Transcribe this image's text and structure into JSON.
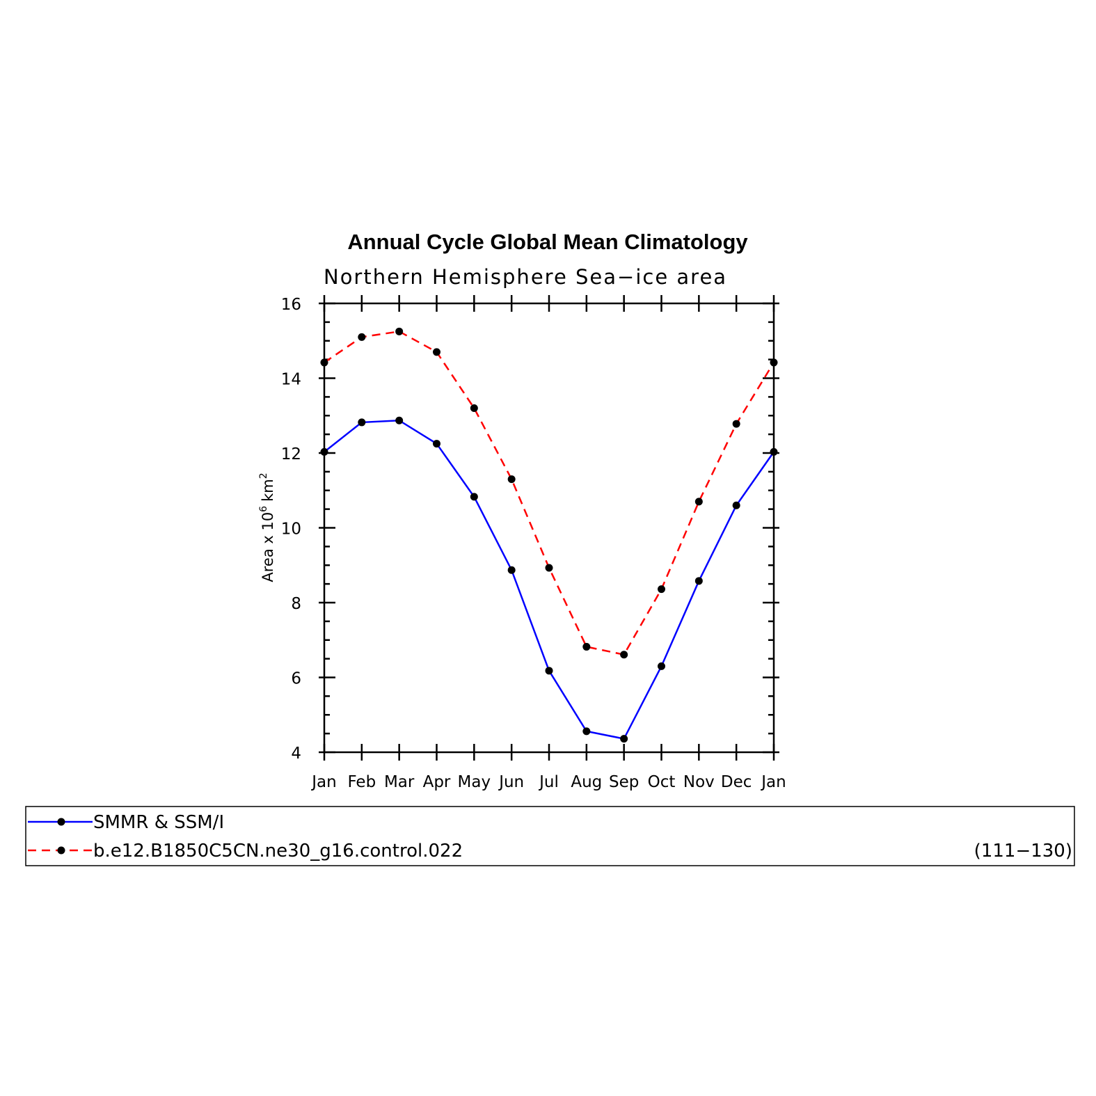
{
  "chart_data": {
    "type": "line",
    "title": "Annual Cycle Global Mean Climatology",
    "subtitle": "Northern Hemisphere Sea−ice area",
    "ylabel": "Area x 10",
    "ylabel_exponent": "6",
    "ylabel_unit": "km",
    "ylabel_unit_exponent": "2",
    "categories": [
      "Jan",
      "Feb",
      "Mar",
      "Apr",
      "May",
      "Jun",
      "Jul",
      "Aug",
      "Sep",
      "Oct",
      "Nov",
      "Dec",
      "Jan"
    ],
    "ylim": [
      4,
      16
    ],
    "yticks": [
      4,
      6,
      8,
      10,
      12,
      14,
      16
    ],
    "series": [
      {
        "name": "SMMR & SSM/I",
        "color": "#0000ff",
        "style": "solid",
        "values": [
          12.03,
          12.82,
          12.87,
          12.25,
          10.83,
          8.87,
          6.18,
          4.56,
          4.36,
          6.3,
          8.58,
          10.6,
          12.03
        ]
      },
      {
        "name": "b.e12.B1850C5CN.ne30_g16.control.022",
        "color": "#ff0000",
        "style": "dashed",
        "values": [
          14.42,
          15.1,
          15.25,
          14.7,
          13.2,
          11.3,
          8.93,
          6.82,
          6.61,
          8.36,
          10.7,
          12.78,
          14.42
        ]
      }
    ],
    "legend_note": "(111−130)",
    "legend_position": "bottom"
  }
}
